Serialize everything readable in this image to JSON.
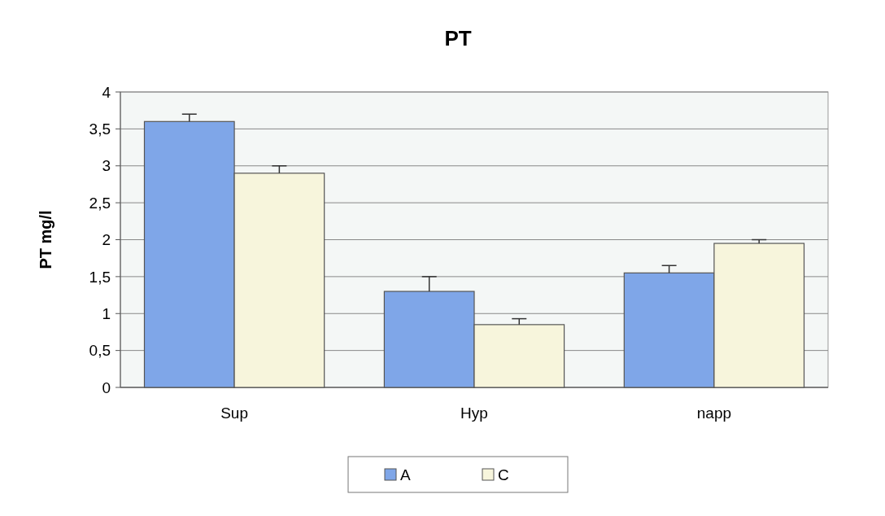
{
  "chart_data": {
    "type": "bar",
    "title": "PT",
    "ylabel": "PT mg/l",
    "categories": [
      "Sup",
      "Hyp",
      "napp"
    ],
    "series": [
      {
        "name": "A",
        "color": "#7fa6e8",
        "values": [
          3.6,
          1.3,
          1.55
        ],
        "errors": [
          0.1,
          0.2,
          0.1
        ]
      },
      {
        "name": "C",
        "color": "#f7f5dc",
        "values": [
          2.9,
          0.85,
          1.95
        ],
        "errors": [
          0.1,
          0.08,
          0.05
        ]
      }
    ],
    "ylim": [
      0,
      4
    ],
    "yticks": [
      0,
      {
        "value": 0.5,
        "label": "0,5"
      },
      1,
      {
        "value": 1.5,
        "label": "1,5"
      },
      2,
      {
        "value": 2.5,
        "label": "2,5"
      },
      3,
      {
        "value": 3.5,
        "label": "3,5"
      },
      4
    ],
    "grid": "y",
    "legend": "bottom"
  }
}
